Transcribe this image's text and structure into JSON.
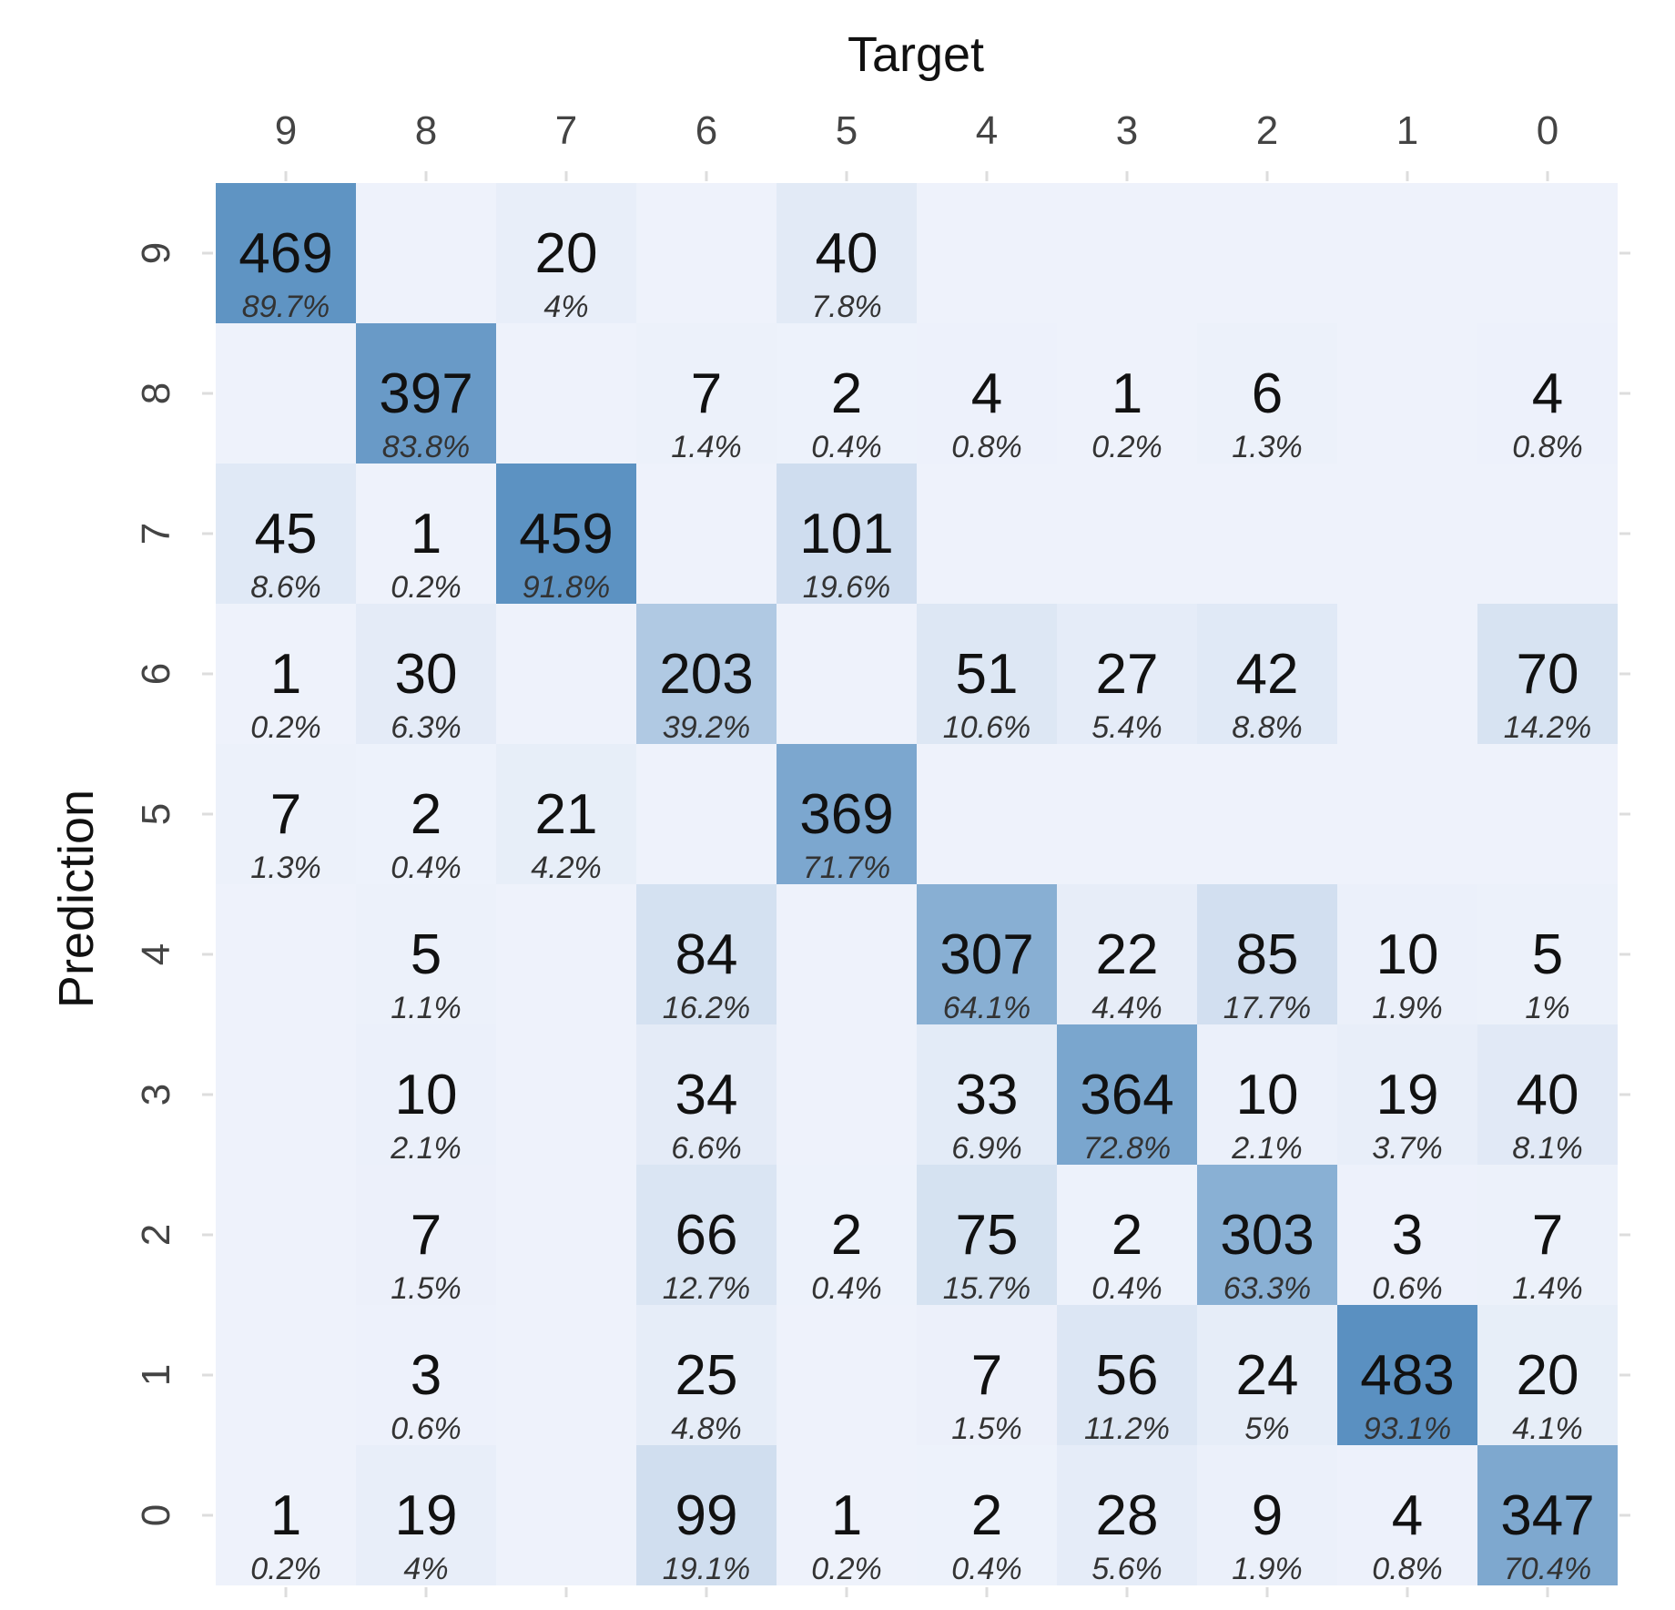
{
  "chart_data": {
    "type": "heatmap",
    "title": "",
    "xlabel": "Target",
    "ylabel": "Prediction",
    "x_categories": [
      "9",
      "8",
      "7",
      "6",
      "5",
      "4",
      "3",
      "2",
      "1",
      "0"
    ],
    "y_categories": [
      "9",
      "8",
      "7",
      "6",
      "5",
      "4",
      "3",
      "2",
      "1",
      "0"
    ],
    "cells": [
      {
        "target": "9",
        "prediction": "9",
        "count": 469,
        "percent": "89.7%"
      },
      {
        "target": "7",
        "prediction": "9",
        "count": 20,
        "percent": "4%"
      },
      {
        "target": "5",
        "prediction": "9",
        "count": 40,
        "percent": "7.8%"
      },
      {
        "target": "8",
        "prediction": "8",
        "count": 397,
        "percent": "83.8%"
      },
      {
        "target": "6",
        "prediction": "8",
        "count": 7,
        "percent": "1.4%"
      },
      {
        "target": "5",
        "prediction": "8",
        "count": 2,
        "percent": "0.4%"
      },
      {
        "target": "4",
        "prediction": "8",
        "count": 4,
        "percent": "0.8%"
      },
      {
        "target": "3",
        "prediction": "8",
        "count": 1,
        "percent": "0.2%"
      },
      {
        "target": "2",
        "prediction": "8",
        "count": 6,
        "percent": "1.3%"
      },
      {
        "target": "0",
        "prediction": "8",
        "count": 4,
        "percent": "0.8%"
      },
      {
        "target": "9",
        "prediction": "7",
        "count": 45,
        "percent": "8.6%"
      },
      {
        "target": "8",
        "prediction": "7",
        "count": 1,
        "percent": "0.2%"
      },
      {
        "target": "7",
        "prediction": "7",
        "count": 459,
        "percent": "91.8%"
      },
      {
        "target": "5",
        "prediction": "7",
        "count": 101,
        "percent": "19.6%"
      },
      {
        "target": "9",
        "prediction": "6",
        "count": 1,
        "percent": "0.2%"
      },
      {
        "target": "8",
        "prediction": "6",
        "count": 30,
        "percent": "6.3%"
      },
      {
        "target": "6",
        "prediction": "6",
        "count": 203,
        "percent": "39.2%"
      },
      {
        "target": "4",
        "prediction": "6",
        "count": 51,
        "percent": "10.6%"
      },
      {
        "target": "3",
        "prediction": "6",
        "count": 27,
        "percent": "5.4%"
      },
      {
        "target": "2",
        "prediction": "6",
        "count": 42,
        "percent": "8.8%"
      },
      {
        "target": "0",
        "prediction": "6",
        "count": 70,
        "percent": "14.2%"
      },
      {
        "target": "9",
        "prediction": "5",
        "count": 7,
        "percent": "1.3%"
      },
      {
        "target": "8",
        "prediction": "5",
        "count": 2,
        "percent": "0.4%"
      },
      {
        "target": "7",
        "prediction": "5",
        "count": 21,
        "percent": "4.2%"
      },
      {
        "target": "5",
        "prediction": "5",
        "count": 369,
        "percent": "71.7%"
      },
      {
        "target": "8",
        "prediction": "4",
        "count": 5,
        "percent": "1.1%"
      },
      {
        "target": "6",
        "prediction": "4",
        "count": 84,
        "percent": "16.2%"
      },
      {
        "target": "4",
        "prediction": "4",
        "count": 307,
        "percent": "64.1%"
      },
      {
        "target": "3",
        "prediction": "4",
        "count": 22,
        "percent": "4.4%"
      },
      {
        "target": "2",
        "prediction": "4",
        "count": 85,
        "percent": "17.7%"
      },
      {
        "target": "1",
        "prediction": "4",
        "count": 10,
        "percent": "1.9%"
      },
      {
        "target": "0",
        "prediction": "4",
        "count": 5,
        "percent": "1%"
      },
      {
        "target": "8",
        "prediction": "3",
        "count": 10,
        "percent": "2.1%"
      },
      {
        "target": "6",
        "prediction": "3",
        "count": 34,
        "percent": "6.6%"
      },
      {
        "target": "4",
        "prediction": "3",
        "count": 33,
        "percent": "6.9%"
      },
      {
        "target": "3",
        "prediction": "3",
        "count": 364,
        "percent": "72.8%"
      },
      {
        "target": "2",
        "prediction": "3",
        "count": 10,
        "percent": "2.1%"
      },
      {
        "target": "1",
        "prediction": "3",
        "count": 19,
        "percent": "3.7%"
      },
      {
        "target": "0",
        "prediction": "3",
        "count": 40,
        "percent": "8.1%"
      },
      {
        "target": "8",
        "prediction": "2",
        "count": 7,
        "percent": "1.5%"
      },
      {
        "target": "6",
        "prediction": "2",
        "count": 66,
        "percent": "12.7%"
      },
      {
        "target": "5",
        "prediction": "2",
        "count": 2,
        "percent": "0.4%"
      },
      {
        "target": "4",
        "prediction": "2",
        "count": 75,
        "percent": "15.7%"
      },
      {
        "target": "3",
        "prediction": "2",
        "count": 2,
        "percent": "0.4%"
      },
      {
        "target": "2",
        "prediction": "2",
        "count": 303,
        "percent": "63.3%"
      },
      {
        "target": "1",
        "prediction": "2",
        "count": 3,
        "percent": "0.6%"
      },
      {
        "target": "0",
        "prediction": "2",
        "count": 7,
        "percent": "1.4%"
      },
      {
        "target": "8",
        "prediction": "1",
        "count": 3,
        "percent": "0.6%"
      },
      {
        "target": "6",
        "prediction": "1",
        "count": 25,
        "percent": "4.8%"
      },
      {
        "target": "4",
        "prediction": "1",
        "count": 7,
        "percent": "1.5%"
      },
      {
        "target": "3",
        "prediction": "1",
        "count": 56,
        "percent": "11.2%"
      },
      {
        "target": "2",
        "prediction": "1",
        "count": 24,
        "percent": "5%"
      },
      {
        "target": "1",
        "prediction": "1",
        "count": 483,
        "percent": "93.1%"
      },
      {
        "target": "0",
        "prediction": "1",
        "count": 20,
        "percent": "4.1%"
      },
      {
        "target": "9",
        "prediction": "0",
        "count": 1,
        "percent": "0.2%"
      },
      {
        "target": "8",
        "prediction": "0",
        "count": 19,
        "percent": "4%"
      },
      {
        "target": "6",
        "prediction": "0",
        "count": 99,
        "percent": "19.1%"
      },
      {
        "target": "5",
        "prediction": "0",
        "count": 1,
        "percent": "0.2%"
      },
      {
        "target": "4",
        "prediction": "0",
        "count": 2,
        "percent": "0.4%"
      },
      {
        "target": "3",
        "prediction": "0",
        "count": 28,
        "percent": "5.6%"
      },
      {
        "target": "2",
        "prediction": "0",
        "count": 9,
        "percent": "1.9%"
      },
      {
        "target": "1",
        "prediction": "0",
        "count": 4,
        "percent": "0.8%"
      },
      {
        "target": "0",
        "prediction": "0",
        "count": 347,
        "percent": "70.4%"
      }
    ],
    "color_scale": {
      "low": "#eef2fb",
      "high": "#4f89bd"
    },
    "percent_range": [
      0,
      100
    ],
    "grid": false,
    "legend": "none"
  }
}
